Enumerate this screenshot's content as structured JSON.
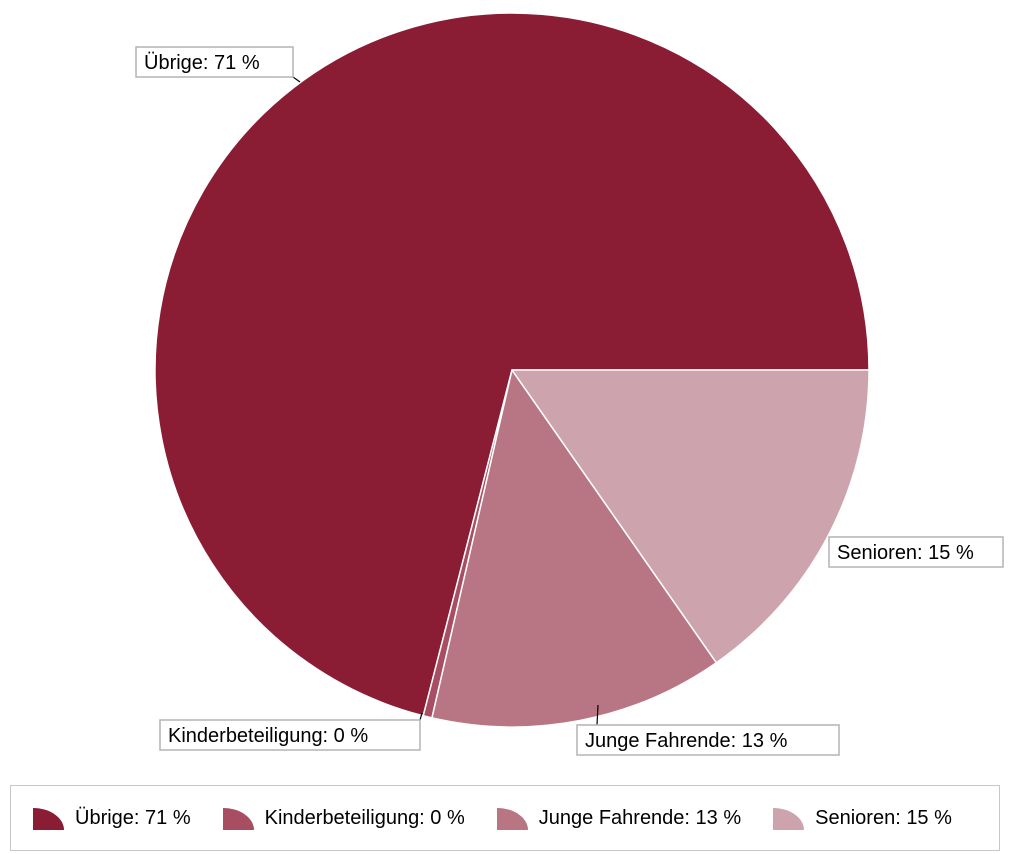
{
  "chart_data": {
    "type": "pie",
    "title": "",
    "slices": [
      {
        "label": "Übrige: 71 %",
        "value": 71.0,
        "color": "#8a1c34"
      },
      {
        "label": "Kinderbeteiligung: 0 %",
        "value": 0.4,
        "color": "#a84e63"
      },
      {
        "label": "Junge Fahrende: 13 %",
        "value": 13.3,
        "color": "#b87583"
      },
      {
        "label": "Senioren: 15 %",
        "value": 15.3,
        "color": "#cda4ad"
      }
    ],
    "start_angle_deg": 0,
    "direction": "counterclockwise",
    "legend_position": "bottom"
  }
}
